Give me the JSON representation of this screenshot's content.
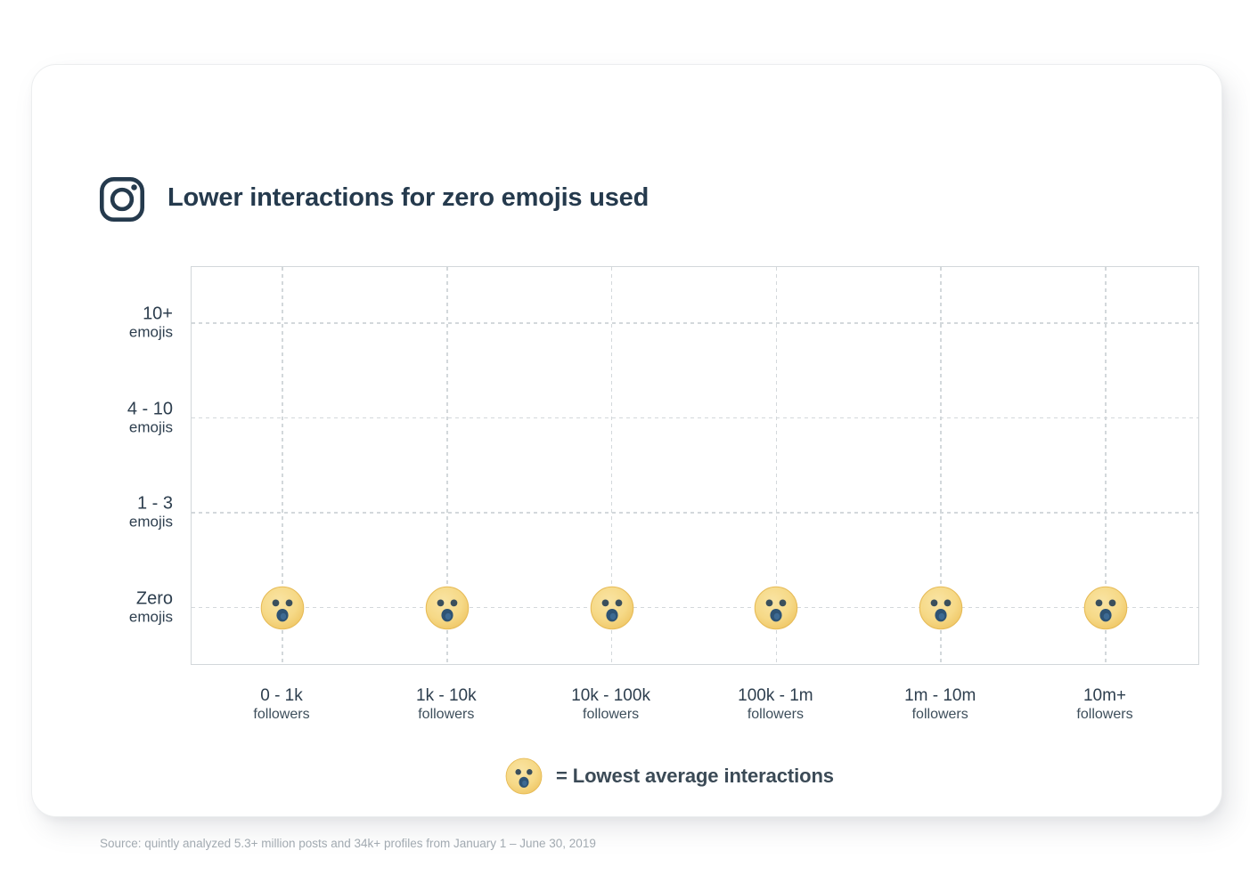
{
  "page": {
    "header": {
      "icon": "instagram-icon",
      "title": "Lower interactions for zero emojis used"
    },
    "source_note": "Source: quintly analyzed 5.3+ million posts and 34k+ profiles from January 1 – June 30, 2019"
  },
  "legend": {
    "marker": "surprised-emoji-icon",
    "text": "= Lowest average interactions"
  },
  "colors": {
    "title_text": "#253a4d",
    "axis_text": "#2d3e4e",
    "grid_line": "#d3d8db",
    "emoji_face": "#f6d987",
    "emoji_face_edge": "#edc15c",
    "emoji_eyes": "#3a4f5c",
    "emoji_mouth": "#2e5374",
    "legend_text": "#3b4a56",
    "source_text": "#a2aab1",
    "card_background": "#ffffff"
  },
  "chart_data": {
    "type": "scatter",
    "title": "Lower interactions for zero emojis used",
    "grid": "dashed",
    "legend_position": "bottom-center",
    "legend_label": "= Lowest average interactions",
    "marker_glyph": "surprised-face-emoji",
    "x_axis": {
      "label": "followers",
      "categories": [
        {
          "range": "0 - 1k",
          "unit": "followers"
        },
        {
          "range": "1k - 10k",
          "unit": "followers"
        },
        {
          "range": "10k - 100k",
          "unit": "followers"
        },
        {
          "range": "100k - 1m",
          "unit": "followers"
        },
        {
          "range": "1m - 10m",
          "unit": "followers"
        },
        {
          "range": "10m+",
          "unit": "followers"
        }
      ]
    },
    "y_axis": {
      "label": "emojis used",
      "categories_top_to_bottom": [
        {
          "range": "10+",
          "unit": "emojis"
        },
        {
          "range": "4 - 10",
          "unit": "emojis"
        },
        {
          "range": "1 - 3",
          "unit": "emojis"
        },
        {
          "range": "Zero",
          "unit": "emojis"
        }
      ]
    },
    "points": [
      {
        "x": "0 - 1k followers",
        "y": "Zero emojis",
        "col": 0,
        "row": 3,
        "marker": "surprised-face-emoji",
        "meaning": "Lowest average interactions"
      },
      {
        "x": "1k - 10k followers",
        "y": "Zero emojis",
        "col": 1,
        "row": 3,
        "marker": "surprised-face-emoji",
        "meaning": "Lowest average interactions"
      },
      {
        "x": "10k - 100k followers",
        "y": "Zero emojis",
        "col": 2,
        "row": 3,
        "marker": "surprised-face-emoji",
        "meaning": "Lowest average interactions"
      },
      {
        "x": "100k - 1m followers",
        "y": "Zero emojis",
        "col": 3,
        "row": 3,
        "marker": "surprised-face-emoji",
        "meaning": "Lowest average interactions"
      },
      {
        "x": "1m - 10m followers",
        "y": "Zero emojis",
        "col": 4,
        "row": 3,
        "marker": "surprised-face-emoji",
        "meaning": "Lowest average interactions"
      },
      {
        "x": "10m+ followers",
        "y": "Zero emojis",
        "col": 5,
        "row": 3,
        "marker": "surprised-face-emoji",
        "meaning": "Lowest average interactions"
      }
    ]
  }
}
